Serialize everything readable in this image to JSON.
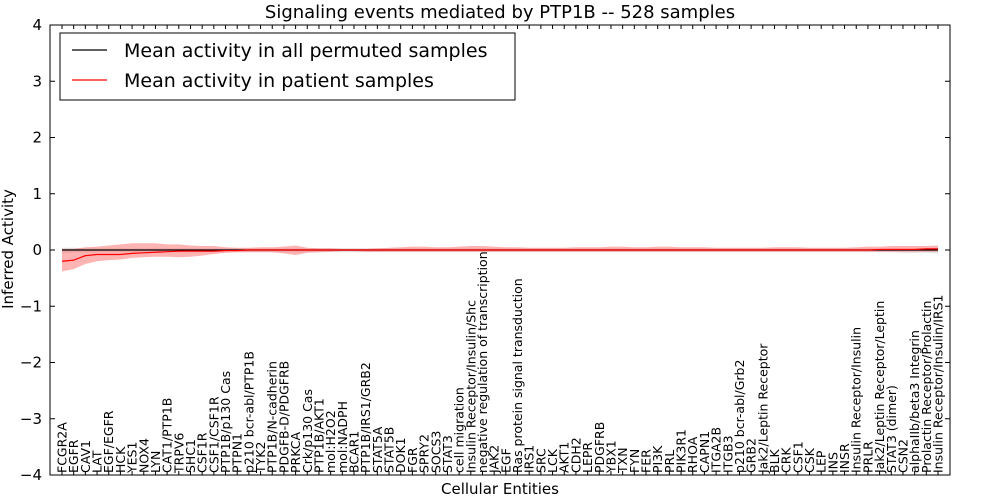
{
  "chart_data": {
    "type": "line",
    "title": "Signaling events mediated by PTP1B -- 528 samples",
    "xlabel": "Cellular Entities",
    "ylabel": "Inferred Activity",
    "ylim": [
      -4,
      4
    ],
    "yticks": [
      -4,
      -3,
      -2,
      -1,
      0,
      1,
      2,
      3,
      4
    ],
    "legend_location": "top-left",
    "categories": [
      "FCGR2A",
      "EGFR",
      "CAV1",
      "LAT",
      "EGF/EGFR",
      "HCK",
      "YES1",
      "NOX4",
      "LYN",
      "CAT1/PTP1B",
      "TRPV6",
      "SHC1",
      "CSF1R",
      "CSF1/CSF1R",
      "PTP1B/p130 Cas",
      "PTPN1",
      "p210 bcr-abl/PTP1B",
      "TYK2",
      "PTP1B/N-cadherin",
      "PDGFB-D/PDGFRB",
      "PRKCA",
      "Crk/p130 Cas",
      "PTP1B/AKT1",
      "mol:H2O2",
      "mol:NADPH",
      "BCAR1",
      "PTP1B/IRS1/GRB2",
      "STAT5A",
      "STAT5B",
      "DOK1",
      "FGR",
      "SPRY2",
      "SOCS3",
      "STAT3",
      "cell migration",
      "Insulin Receptor/Insulin/Shc",
      "negative regulation of transcription",
      "JAK2",
      "EGF",
      "Ras protein signal transduction",
      "IRS1",
      "SRC",
      "LCK",
      "AKT1",
      "CDH2",
      "LEPR",
      "PDGFRB",
      "YBX1",
      "TXN",
      "FYN",
      "FER",
      "PI3K",
      "PRL",
      "PIK3R1",
      "RHOA",
      "CAPN1",
      "ITGA2B",
      "ITGB3",
      "p210 bcr-abl/Grb2",
      "GRB2",
      "Jak2/Leptin Receptor",
      "BLK",
      "CRK",
      "CSF1",
      "CSK",
      "LEP",
      "INS",
      "INSR",
      "Insulin Receptor/Insulin",
      "PRLR",
      "Jak2/Leptin Receptor/Leptin",
      "STAT3 (dimer)",
      "CSN2",
      "alphaIIb/beta3 Integrin",
      "Prolactin Receptor/Prolactin",
      "Insulin Receptor/Insulin/IRS1"
    ],
    "series": [
      {
        "name": "Mean activity in all permuted samples",
        "color": "#000000",
        "values": [
          0,
          0,
          0,
          0,
          0,
          0,
          0,
          0,
          0,
          0,
          0,
          0,
          0,
          0,
          0,
          0,
          0,
          0,
          0,
          0,
          0,
          0,
          0,
          0,
          0,
          0,
          0,
          0,
          0,
          0,
          0,
          0,
          0,
          0,
          0,
          0,
          0,
          0,
          0,
          0,
          0,
          0,
          0,
          0,
          0,
          0,
          0,
          0,
          0,
          0,
          0,
          0,
          0,
          0,
          0,
          0,
          0,
          0,
          0,
          0,
          0,
          0,
          0,
          0,
          0,
          0,
          0,
          0,
          0,
          0,
          0,
          0,
          0,
          0,
          0,
          0
        ],
        "band_upper": [
          0.04,
          0.04,
          0.03,
          0.03,
          0.03,
          0.03,
          0.03,
          0.03,
          0.03,
          0.03,
          0.03,
          0.03,
          0.03,
          0.03,
          0.03,
          0.03,
          0.03,
          0.03,
          0.03,
          0.03,
          0.03,
          0.03,
          0.03,
          0.03,
          0.03,
          0.03,
          0.03,
          0.03,
          0.03,
          0.03,
          0.03,
          0.03,
          0.03,
          0.03,
          0.03,
          0.03,
          0.03,
          0.03,
          0.03,
          0.03,
          0.03,
          0.03,
          0.03,
          0.03,
          0.03,
          0.03,
          0.03,
          0.03,
          0.03,
          0.03,
          0.03,
          0.03,
          0.03,
          0.03,
          0.03,
          0.03,
          0.03,
          0.03,
          0.03,
          0.03,
          0.03,
          0.03,
          0.03,
          0.03,
          0.03,
          0.03,
          0.03,
          0.03,
          0.03,
          0.03,
          0.03,
          0.03,
          0.03,
          0.03,
          0.03,
          0.03
        ],
        "band_lower": [
          -0.06,
          -0.05,
          -0.05,
          -0.04,
          -0.04,
          -0.04,
          -0.04,
          -0.04,
          -0.04,
          -0.04,
          -0.04,
          -0.04,
          -0.04,
          -0.04,
          -0.04,
          -0.04,
          -0.04,
          -0.04,
          -0.04,
          -0.04,
          -0.04,
          -0.04,
          -0.04,
          -0.04,
          -0.04,
          -0.04,
          -0.04,
          -0.04,
          -0.04,
          -0.04,
          -0.04,
          -0.04,
          -0.04,
          -0.04,
          -0.04,
          -0.04,
          -0.04,
          -0.04,
          -0.04,
          -0.04,
          -0.04,
          -0.04,
          -0.04,
          -0.04,
          -0.04,
          -0.04,
          -0.04,
          -0.04,
          -0.04,
          -0.04,
          -0.04,
          -0.04,
          -0.04,
          -0.04,
          -0.04,
          -0.04,
          -0.04,
          -0.04,
          -0.04,
          -0.04,
          -0.04,
          -0.04,
          -0.04,
          -0.04,
          -0.04,
          -0.04,
          -0.04,
          -0.04,
          -0.04,
          -0.04,
          -0.04,
          -0.04,
          -0.05,
          -0.05,
          -0.05,
          -0.06
        ],
        "band_color": "#bbbbbb"
      },
      {
        "name": "Mean activity in patient samples",
        "color": "#ff0000",
        "values": [
          -0.2,
          -0.18,
          -0.1,
          -0.08,
          -0.08,
          -0.08,
          -0.06,
          -0.05,
          -0.04,
          -0.03,
          -0.02,
          -0.02,
          -0.02,
          -0.02,
          -0.01,
          -0.01,
          0,
          0,
          0,
          0,
          0,
          0,
          0,
          0,
          0,
          0,
          0,
          0,
          0,
          0,
          0,
          0,
          0,
          0,
          0,
          0,
          0,
          0,
          0,
          0,
          0,
          0,
          0,
          0,
          0,
          0,
          0,
          0,
          0,
          0,
          0,
          0,
          0,
          0,
          0,
          0,
          0,
          0,
          0,
          0,
          0,
          0,
          0,
          0,
          0,
          0,
          0,
          0,
          0,
          0,
          0.01,
          0.01,
          0.01,
          0.01,
          0.02,
          0.02
        ],
        "band_upper": [
          0.02,
          0.02,
          0.05,
          0.06,
          0.08,
          0.1,
          0.12,
          0.12,
          0.12,
          0.1,
          0.1,
          0.08,
          0.07,
          0.07,
          0.05,
          0.04,
          0.04,
          0.05,
          0.05,
          0.06,
          0.08,
          0.04,
          0.03,
          0.03,
          0.02,
          0.02,
          0.02,
          0.03,
          0.04,
          0.05,
          0.06,
          0.06,
          0.05,
          0.05,
          0.06,
          0.07,
          0.07,
          0.06,
          0.05,
          0.05,
          0.04,
          0.04,
          0.04,
          0.04,
          0.05,
          0.05,
          0.05,
          0.06,
          0.06,
          0.05,
          0.05,
          0.06,
          0.06,
          0.05,
          0.05,
          0.05,
          0.04,
          0.04,
          0.04,
          0.04,
          0.04,
          0.05,
          0.05,
          0.05,
          0.04,
          0.04,
          0.04,
          0.04,
          0.05,
          0.06,
          0.06,
          0.07,
          0.07,
          0.07,
          0.07,
          0.08
        ],
        "band_lower": [
          -0.38,
          -0.34,
          -0.25,
          -0.2,
          -0.18,
          -0.17,
          -0.14,
          -0.13,
          -0.12,
          -0.12,
          -0.13,
          -0.12,
          -0.1,
          -0.07,
          -0.05,
          -0.04,
          -0.04,
          -0.04,
          -0.04,
          -0.06,
          -0.09,
          -0.05,
          -0.04,
          -0.03,
          -0.02,
          -0.02,
          -0.03,
          -0.03,
          -0.03,
          -0.03,
          -0.03,
          -0.03,
          -0.03,
          -0.03,
          -0.03,
          -0.03,
          -0.03,
          -0.03,
          -0.03,
          -0.03,
          -0.03,
          -0.03,
          -0.03,
          -0.03,
          -0.03,
          -0.03,
          -0.03,
          -0.03,
          -0.03,
          -0.03,
          -0.03,
          -0.03,
          -0.03,
          -0.03,
          -0.03,
          -0.03,
          -0.03,
          -0.03,
          -0.03,
          -0.03,
          -0.03,
          -0.03,
          -0.03,
          -0.03,
          -0.03,
          -0.03,
          -0.03,
          -0.03,
          -0.03,
          -0.03,
          -0.03,
          -0.03,
          -0.03,
          -0.03,
          -0.03,
          -0.03
        ],
        "band_color": "#ff7777"
      }
    ]
  }
}
